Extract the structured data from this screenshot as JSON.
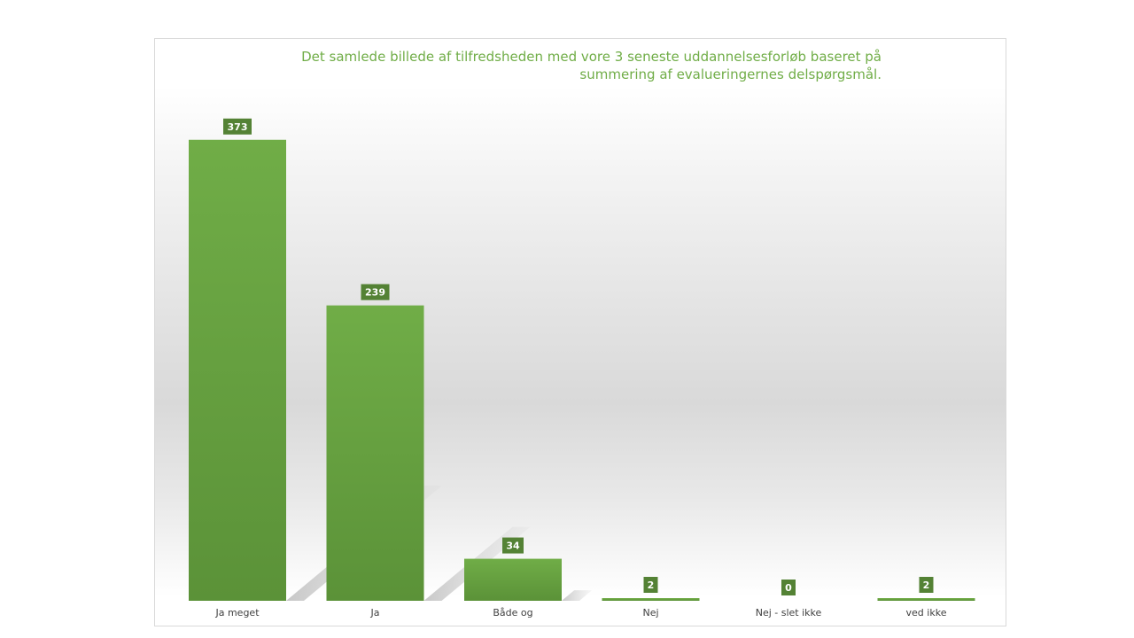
{
  "chart_data": {
    "type": "bar",
    "title": "Det samlede billede af tilfredsheden med vore 3 seneste uddannelsesforløb baseret på summering af evalueringernes delspørgsmål.",
    "categories": [
      "Ja meget",
      "Ja",
      "Både og",
      "Nej",
      "Nej - slet ikke",
      "ved ikke"
    ],
    "values": [
      373,
      239,
      34,
      2,
      0,
      2
    ],
    "data_labels": [
      "373",
      "239",
      "34",
      "2",
      "0",
      "2"
    ],
    "xlabel": "",
    "ylabel": "",
    "ylim": [
      0,
      380
    ],
    "grid": false,
    "legend": "none",
    "colors": {
      "bar_top": "#70ad47",
      "bar_bottom": "#5b9238",
      "label_bg": "#548235",
      "title": "#70ad47"
    }
  }
}
